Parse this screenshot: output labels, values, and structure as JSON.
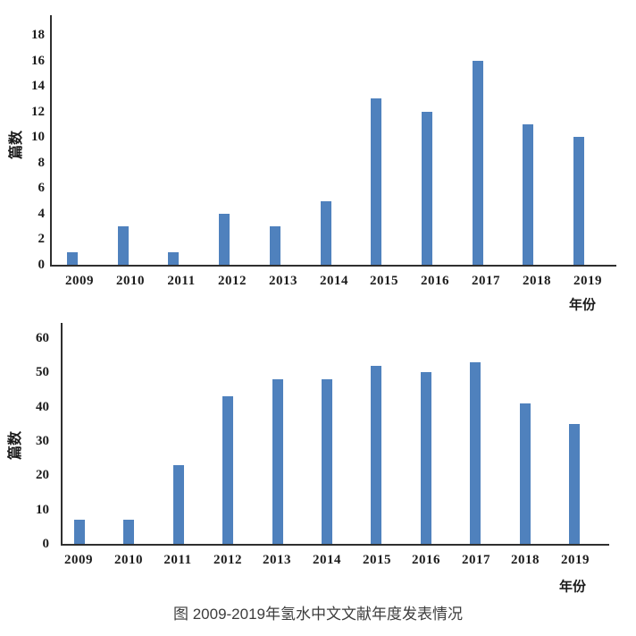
{
  "caption": "图 2009-2019年氢水中文文献年度发表情况",
  "style": {
    "bar_color": "#4F81BD",
    "axis_color": "#2f2f2f",
    "text_color": "#1c1c1c",
    "caption_color": "#3d3d3d"
  },
  "chart_data": [
    {
      "type": "bar",
      "categories": [
        "2009",
        "2010",
        "2011",
        "2012",
        "2013",
        "2014",
        "2015",
        "2016",
        "2017",
        "2018",
        "2019"
      ],
      "values": [
        1,
        3,
        1,
        4,
        3,
        5,
        13,
        12,
        16,
        11,
        10
      ],
      "title": "",
      "xlabel": "年份",
      "ylabel": "篇数",
      "ylim": [
        0,
        18
      ],
      "ystep": 2,
      "grid": false,
      "legend_position": "none"
    },
    {
      "type": "bar",
      "categories": [
        "2009",
        "2010",
        "2011",
        "2012",
        "2013",
        "2014",
        "2015",
        "2016",
        "2017",
        "2018",
        "2019"
      ],
      "values": [
        7,
        7,
        23,
        43,
        48,
        48,
        52,
        50,
        53,
        41,
        35
      ],
      "title": "",
      "xlabel": "年份",
      "ylabel": "篇数",
      "ylim": [
        0,
        60
      ],
      "ystep": 10,
      "grid": false,
      "legend_position": "none"
    }
  ]
}
